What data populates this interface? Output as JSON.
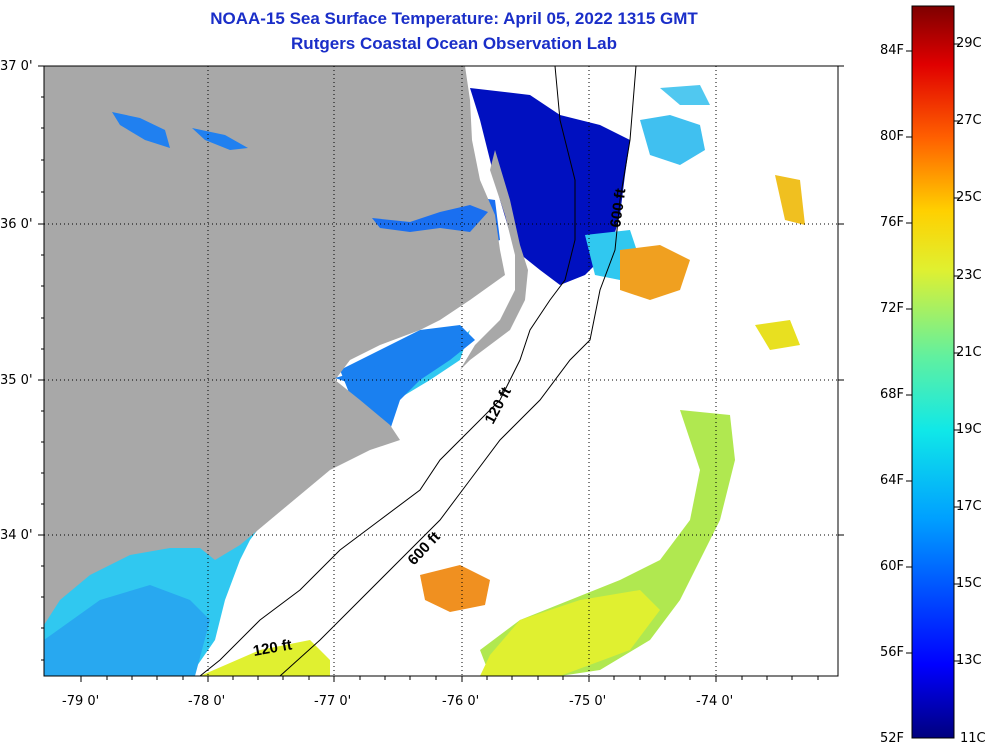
{
  "title": {
    "line1": "NOAA-15 Sea Surface Temperature:  April 05, 2022 1315 GMT",
    "line2": "Rutgers Coastal Ocean Observation Lab"
  },
  "axes": {
    "lat_labels": [
      "37 0'",
      "36 0'",
      "35 0'",
      "34 0'"
    ],
    "lon_labels": [
      "-79 0'",
      "-78 0'",
      "-77 0'",
      "-76 0'",
      "-75 0'",
      "-74 0'"
    ],
    "lat_range": [
      33.15,
      37.0
    ],
    "lon_range": [
      -79.3,
      -73.0
    ]
  },
  "depth_contours": [
    "120 ft",
    "600 ft",
    "120 ft",
    "600 ft"
  ],
  "colorbar": {
    "fahrenheit": [
      "84F",
      "80F",
      "76F",
      "72F",
      "68F",
      "64F",
      "60F",
      "56F",
      "52F"
    ],
    "celsius": [
      "29C",
      "27C",
      "25C",
      "23C",
      "21C",
      "19C",
      "17C",
      "15C",
      "13C",
      "11C"
    ],
    "colors": [
      "#00007e",
      "#0000ff",
      "#00a0ff",
      "#10e8e8",
      "#60f0a0",
      "#e0f030",
      "#ffd000",
      "#ff6000",
      "#e00000",
      "#7e0000"
    ]
  },
  "colors": {
    "land": "#a8a8a8",
    "cold_water": "#0010c0",
    "cool_water": "#1870f0",
    "shelf_water": "#30c8f0",
    "warm_water": "#c8f040",
    "hot_water": "#f0a020",
    "title": "#1a2ec8"
  }
}
